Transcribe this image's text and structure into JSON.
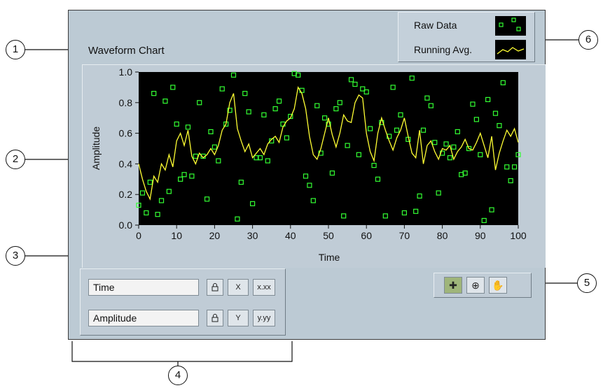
{
  "chart_title": "Waveform Chart",
  "callouts": [
    "1",
    "2",
    "3",
    "4",
    "5",
    "6"
  ],
  "legend": {
    "items": [
      {
        "label": "Raw Data",
        "color": "#33ff33",
        "style": "square markers"
      },
      {
        "label": "Running Avg.",
        "color": "#ffff33",
        "style": "line"
      }
    ]
  },
  "scale_legend": {
    "rows": [
      {
        "name": "Time",
        "lock_icon": "lock-icon",
        "autoscale_label": "X",
        "format_label": "x.xx"
      },
      {
        "name": "Amplitude",
        "lock_icon": "lock-icon",
        "autoscale_label": "Y",
        "format_label": "y.yy"
      }
    ]
  },
  "graph_palette": {
    "tools": [
      "cursor-move-icon",
      "zoom-icon",
      "pan-hand-icon"
    ]
  },
  "colors": {
    "panel": "#bccad4",
    "plot_background": "#000000",
    "raw_data": "#33ff33",
    "running_avg": "#ffff33"
  },
  "chart_data": {
    "type": "line",
    "xlabel": "Time",
    "ylabel": "Amplitude",
    "xlim": [
      0,
      100
    ],
    "ylim": [
      0,
      1
    ],
    "x_ticks": [
      "0",
      "10",
      "20",
      "30",
      "40",
      "50",
      "60",
      "70",
      "80",
      "90",
      "100"
    ],
    "y_ticks": [
      "0.0",
      "0.2",
      "0.4",
      "0.6",
      "0.8",
      "1.0"
    ],
    "grid": false,
    "series": [
      {
        "name": "Raw Data",
        "mode": "markers",
        "x": [
          0,
          1,
          2,
          3,
          4,
          5,
          6,
          7,
          8,
          9,
          10,
          11,
          12,
          13,
          14,
          15,
          16,
          17,
          18,
          19,
          20,
          21,
          22,
          23,
          24,
          25,
          26,
          27,
          28,
          29,
          30,
          31,
          32,
          33,
          34,
          35,
          36,
          37,
          38,
          39,
          40,
          41,
          42,
          43,
          44,
          45,
          46,
          47,
          48,
          49,
          50,
          51,
          52,
          53,
          54,
          55,
          56,
          57,
          58,
          59,
          60,
          61,
          62,
          63,
          64,
          65,
          66,
          67,
          68,
          69,
          70,
          71,
          72,
          73,
          74,
          75,
          76,
          77,
          78,
          79,
          80,
          81,
          82,
          83,
          84,
          85,
          86,
          87,
          88,
          89,
          90,
          91,
          92,
          93,
          94,
          95,
          96,
          97,
          98,
          99,
          100
        ],
        "y": [
          0.13,
          0.21,
          0.08,
          0.28,
          0.86,
          0.07,
          0.16,
          0.81,
          0.22,
          0.9,
          0.66,
          0.3,
          0.33,
          0.64,
          0.32,
          0.45,
          0.8,
          0.45,
          0.17,
          0.61,
          0.51,
          0.42,
          0.89,
          0.66,
          0.75,
          0.98,
          0.04,
          0.28,
          0.86,
          0.74,
          0.14,
          0.44,
          0.44,
          0.72,
          0.42,
          0.55,
          0.76,
          0.81,
          0.66,
          0.57,
          0.71,
          0.99,
          0.98,
          0.88,
          0.32,
          0.26,
          0.16,
          0.78,
          0.47,
          0.7,
          0.66,
          0.34,
          0.76,
          0.8,
          0.06,
          0.52,
          0.95,
          0.92,
          0.46,
          0.89,
          0.87,
          0.63,
          0.39,
          0.3,
          0.67,
          0.06,
          0.58,
          0.9,
          0.62,
          0.72,
          0.08,
          0.56,
          0.96,
          0.09,
          0.19,
          0.62,
          0.83,
          0.78,
          0.54,
          0.21,
          0.47,
          0.53,
          0.44,
          0.51,
          0.61,
          0.33,
          0.34,
          0.5,
          0.79,
          0.69,
          0.46,
          0.03,
          0.82,
          0.1,
          0.73,
          0.65,
          0.93,
          0.38,
          0.29,
          0.38,
          0.46
        ]
      },
      {
        "name": "Running Avg.",
        "mode": "line",
        "x": [
          0,
          1,
          2,
          3,
          4,
          5,
          6,
          7,
          8,
          9,
          10,
          11,
          12,
          13,
          14,
          15,
          16,
          17,
          18,
          19,
          20,
          21,
          22,
          23,
          24,
          25,
          26,
          27,
          28,
          29,
          30,
          31,
          32,
          33,
          34,
          35,
          36,
          37,
          38,
          39,
          40,
          41,
          42,
          43,
          44,
          45,
          46,
          47,
          48,
          49,
          50,
          51,
          52,
          53,
          54,
          55,
          56,
          57,
          58,
          59,
          60,
          61,
          62,
          63,
          64,
          65,
          66,
          67,
          68,
          69,
          70,
          71,
          72,
          73,
          74,
          75,
          76,
          77,
          78,
          79,
          80,
          81,
          82,
          83,
          84,
          85,
          86,
          87,
          88,
          89,
          90,
          91,
          92,
          93,
          94,
          95,
          96,
          97,
          98,
          99,
          100
        ],
        "y": [
          0.4,
          0.3,
          0.22,
          0.17,
          0.32,
          0.28,
          0.4,
          0.36,
          0.46,
          0.38,
          0.55,
          0.6,
          0.52,
          0.62,
          0.45,
          0.4,
          0.47,
          0.44,
          0.46,
          0.5,
          0.46,
          0.52,
          0.62,
          0.66,
          0.8,
          0.86,
          0.63,
          0.55,
          0.48,
          0.53,
          0.44,
          0.47,
          0.5,
          0.46,
          0.53,
          0.56,
          0.58,
          0.54,
          0.64,
          0.68,
          0.7,
          0.76,
          0.9,
          0.86,
          0.76,
          0.58,
          0.46,
          0.43,
          0.5,
          0.6,
          0.7,
          0.59,
          0.51,
          0.6,
          0.72,
          0.68,
          0.67,
          0.8,
          0.85,
          0.83,
          0.6,
          0.48,
          0.42,
          0.6,
          0.7,
          0.62,
          0.55,
          0.49,
          0.57,
          0.62,
          0.7,
          0.58,
          0.47,
          0.44,
          0.62,
          0.4,
          0.52,
          0.55,
          0.48,
          0.43,
          0.5,
          0.49,
          0.52,
          0.43,
          0.48,
          0.51,
          0.56,
          0.5,
          0.49,
          0.54,
          0.6,
          0.52,
          0.44,
          0.58,
          0.36,
          0.47,
          0.55,
          0.62,
          0.58,
          0.63,
          0.54
        ]
      }
    ]
  }
}
